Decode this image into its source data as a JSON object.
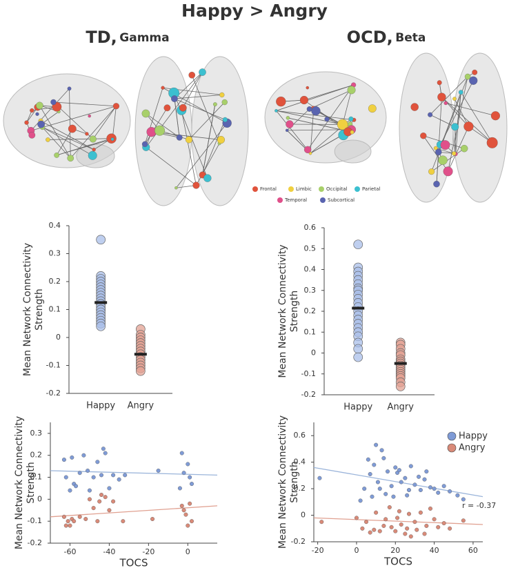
{
  "title": "Happy > Angry",
  "panels": [
    {
      "group": "TD,",
      "band": "Gamma"
    },
    {
      "group": "OCD,",
      "band": "Beta"
    }
  ],
  "brain_legend": [
    {
      "label": "Frontal",
      "color": "#e0533c"
    },
    {
      "label": "Limbic",
      "color": "#f0d040"
    },
    {
      "label": "Occipital",
      "color": "#a8d06a"
    },
    {
      "label": "Parietal",
      "color": "#3cc0d0"
    },
    {
      "label": "Temporal",
      "color": "#e0508a"
    },
    {
      "label": "Subcortical",
      "color": "#5a64b0"
    }
  ],
  "chart_data": [
    {
      "type": "strip",
      "ylabel": [
        "Mean Network Connectivity",
        "Strength"
      ],
      "categories": [
        "Happy",
        "Angry"
      ],
      "colors": [
        "#a9bfea",
        "#e3a193"
      ],
      "values": [
        [
          0.35,
          0.22,
          0.21,
          0.2,
          0.19,
          0.18,
          0.17,
          0.16,
          0.15,
          0.14,
          0.13,
          0.12,
          0.12,
          0.11,
          0.1,
          0.1,
          0.09,
          0.08,
          0.07,
          0.06,
          0.05,
          0.04
        ],
        [
          0.03,
          0.01,
          0,
          -0.01,
          -0.02,
          -0.03,
          -0.04,
          -0.05,
          -0.06,
          -0.06,
          -0.07,
          -0.08,
          -0.09,
          -0.1,
          -0.11,
          -0.12
        ]
      ],
      "means": [
        0.125,
        -0.06
      ],
      "ylim": [
        -0.2,
        0.4
      ],
      "yticks": [
        -0.2,
        -0.1,
        0,
        0.1,
        0.2,
        0.3,
        0.4
      ]
    },
    {
      "type": "strip",
      "ylabel": [
        "Mean Network Connectivity",
        "Strength"
      ],
      "categories": [
        "Happy",
        "Angry"
      ],
      "colors": [
        "#a9bfea",
        "#e3a193"
      ],
      "values": [
        [
          0.52,
          0.41,
          0.39,
          0.37,
          0.35,
          0.33,
          0.31,
          0.3,
          0.28,
          0.26,
          0.24,
          0.22,
          0.2,
          0.18,
          0.16,
          0.14,
          0.12,
          0.1,
          0.08,
          0.05,
          0.02,
          -0.02
        ],
        [
          0.05,
          0.04,
          0.02,
          0,
          -0.01,
          -0.03,
          -0.04,
          -0.05,
          -0.06,
          -0.07,
          -0.08,
          -0.09,
          -0.1,
          -0.11,
          -0.12,
          -0.14,
          -0.16
        ]
      ],
      "means": [
        0.215,
        -0.05
      ],
      "ylim": [
        -0.2,
        0.6
      ],
      "yticks": [
        -0.2,
        -0.1,
        0,
        0.1,
        0.2,
        0.3,
        0.4,
        0.5,
        0.6
      ]
    },
    {
      "type": "scatter",
      "ylabel": [
        "Mean Network Connectivity",
        "Strength"
      ],
      "xlabel": "TOCS",
      "xlim": [
        -70,
        15
      ],
      "xticks": [
        -60,
        -40,
        -20,
        0
      ],
      "ylim": [
        -0.2,
        0.35
      ],
      "yticks": [
        -0.2,
        -0.1,
        0,
        0.1,
        0.2,
        0.3
      ],
      "series": [
        {
          "color": "#7f9bd6",
          "line_color": "#9ab4da",
          "x": [
            -63,
            -62,
            -60,
            -59,
            -58,
            -57,
            -55,
            -53,
            -51,
            -50,
            -48,
            -46,
            -44,
            -43,
            -42,
            -40,
            -38,
            -35,
            -32,
            -15,
            -3,
            -2,
            0,
            1,
            2,
            -4
          ],
          "values": [
            0.18,
            0.1,
            0.04,
            0.19,
            0.07,
            0.06,
            0.12,
            0.2,
            0.13,
            0.04,
            0.1,
            0.17,
            0.11,
            0.23,
            0.21,
            0.05,
            0.11,
            0.09,
            0.11,
            0.13,
            0.21,
            0.12,
            0.16,
            0.1,
            0.07,
            0.05
          ],
          "trend_x": [
            -70,
            15
          ],
          "trend_values": [
            0.13,
            0.11
          ]
        },
        {
          "color": "#d98a78",
          "line_color": "#e0a090",
          "x": [
            -63,
            -62,
            -61,
            -60,
            -59,
            -58,
            -55,
            -52,
            -50,
            -48,
            -46,
            -45,
            -44,
            -42,
            -40,
            -38,
            -33,
            -18,
            -3,
            -2,
            -1,
            0,
            1,
            2
          ],
          "values": [
            -0.08,
            -0.12,
            -0.1,
            -0.12,
            -0.09,
            -0.1,
            -0.08,
            -0.09,
            0,
            -0.04,
            -0.1,
            -0.01,
            0.02,
            0.01,
            -0.05,
            -0.01,
            -0.1,
            -0.09,
            -0.03,
            -0.05,
            -0.07,
            -0.12,
            -0.02,
            -0.1
          ],
          "trend_x": [
            -70,
            15
          ],
          "trend_values": [
            -0.08,
            -0.03
          ]
        }
      ]
    },
    {
      "type": "scatter",
      "ylabel": [
        "Mean Network Connectivity",
        "Strength"
      ],
      "xlabel": "TOCS",
      "xlim": [
        -22,
        65
      ],
      "xticks": [
        -20,
        0,
        20,
        40,
        60
      ],
      "ylim": [
        -0.2,
        0.7
      ],
      "yticks": [
        -0.2,
        0,
        0.2,
        0.4,
        0.6
      ],
      "annotation": "r = -0.37",
      "series": [
        {
          "name": "Happy",
          "color": "#7f9bd6",
          "line_color": "#9ab4da",
          "x": [
            -19,
            2,
            4,
            6,
            7,
            8,
            9,
            10,
            11,
            12,
            13,
            14,
            15,
            16,
            18,
            19,
            20,
            21,
            22,
            23,
            25,
            26,
            27,
            28,
            30,
            32,
            33,
            35,
            36,
            38,
            40,
            42,
            45,
            48,
            52,
            55
          ],
          "values": [
            0.28,
            0.11,
            0.2,
            0.42,
            0.31,
            0.14,
            0.38,
            0.53,
            0.25,
            0.2,
            0.49,
            0.43,
            0.16,
            0.33,
            0.22,
            0.14,
            0.36,
            0.32,
            0.34,
            0.25,
            0.28,
            0.15,
            0.19,
            0.37,
            0.23,
            0.29,
            0.19,
            0.27,
            0.33,
            0.21,
            0.2,
            0.17,
            0.22,
            0.18,
            0.15,
            0.12
          ],
          "trend_x": [
            -22,
            65
          ],
          "trend_values": [
            0.36,
            0.14
          ]
        },
        {
          "name": "Angry",
          "color": "#d98a78",
          "line_color": "#e0a090",
          "x": [
            -18,
            0,
            3,
            5,
            7,
            9,
            10,
            12,
            14,
            15,
            17,
            18,
            20,
            21,
            22,
            23,
            25,
            26,
            27,
            28,
            30,
            31,
            33,
            35,
            36,
            38,
            40,
            42,
            45,
            48,
            55
          ],
          "values": [
            -0.05,
            -0.02,
            -0.1,
            -0.05,
            -0.13,
            -0.11,
            0.02,
            -0.12,
            -0.08,
            -0.03,
            0.06,
            -0.09,
            -0.12,
            -0.02,
            0.03,
            -0.07,
            -0.14,
            -0.1,
            0.01,
            -0.16,
            -0.05,
            -0.11,
            0.02,
            -0.14,
            -0.08,
            0.05,
            -0.03,
            -0.09,
            -0.06,
            -0.1,
            -0.04
          ],
          "trend_x": [
            -22,
            65
          ],
          "trend_values": [
            -0.02,
            -0.07
          ]
        }
      ]
    }
  ]
}
